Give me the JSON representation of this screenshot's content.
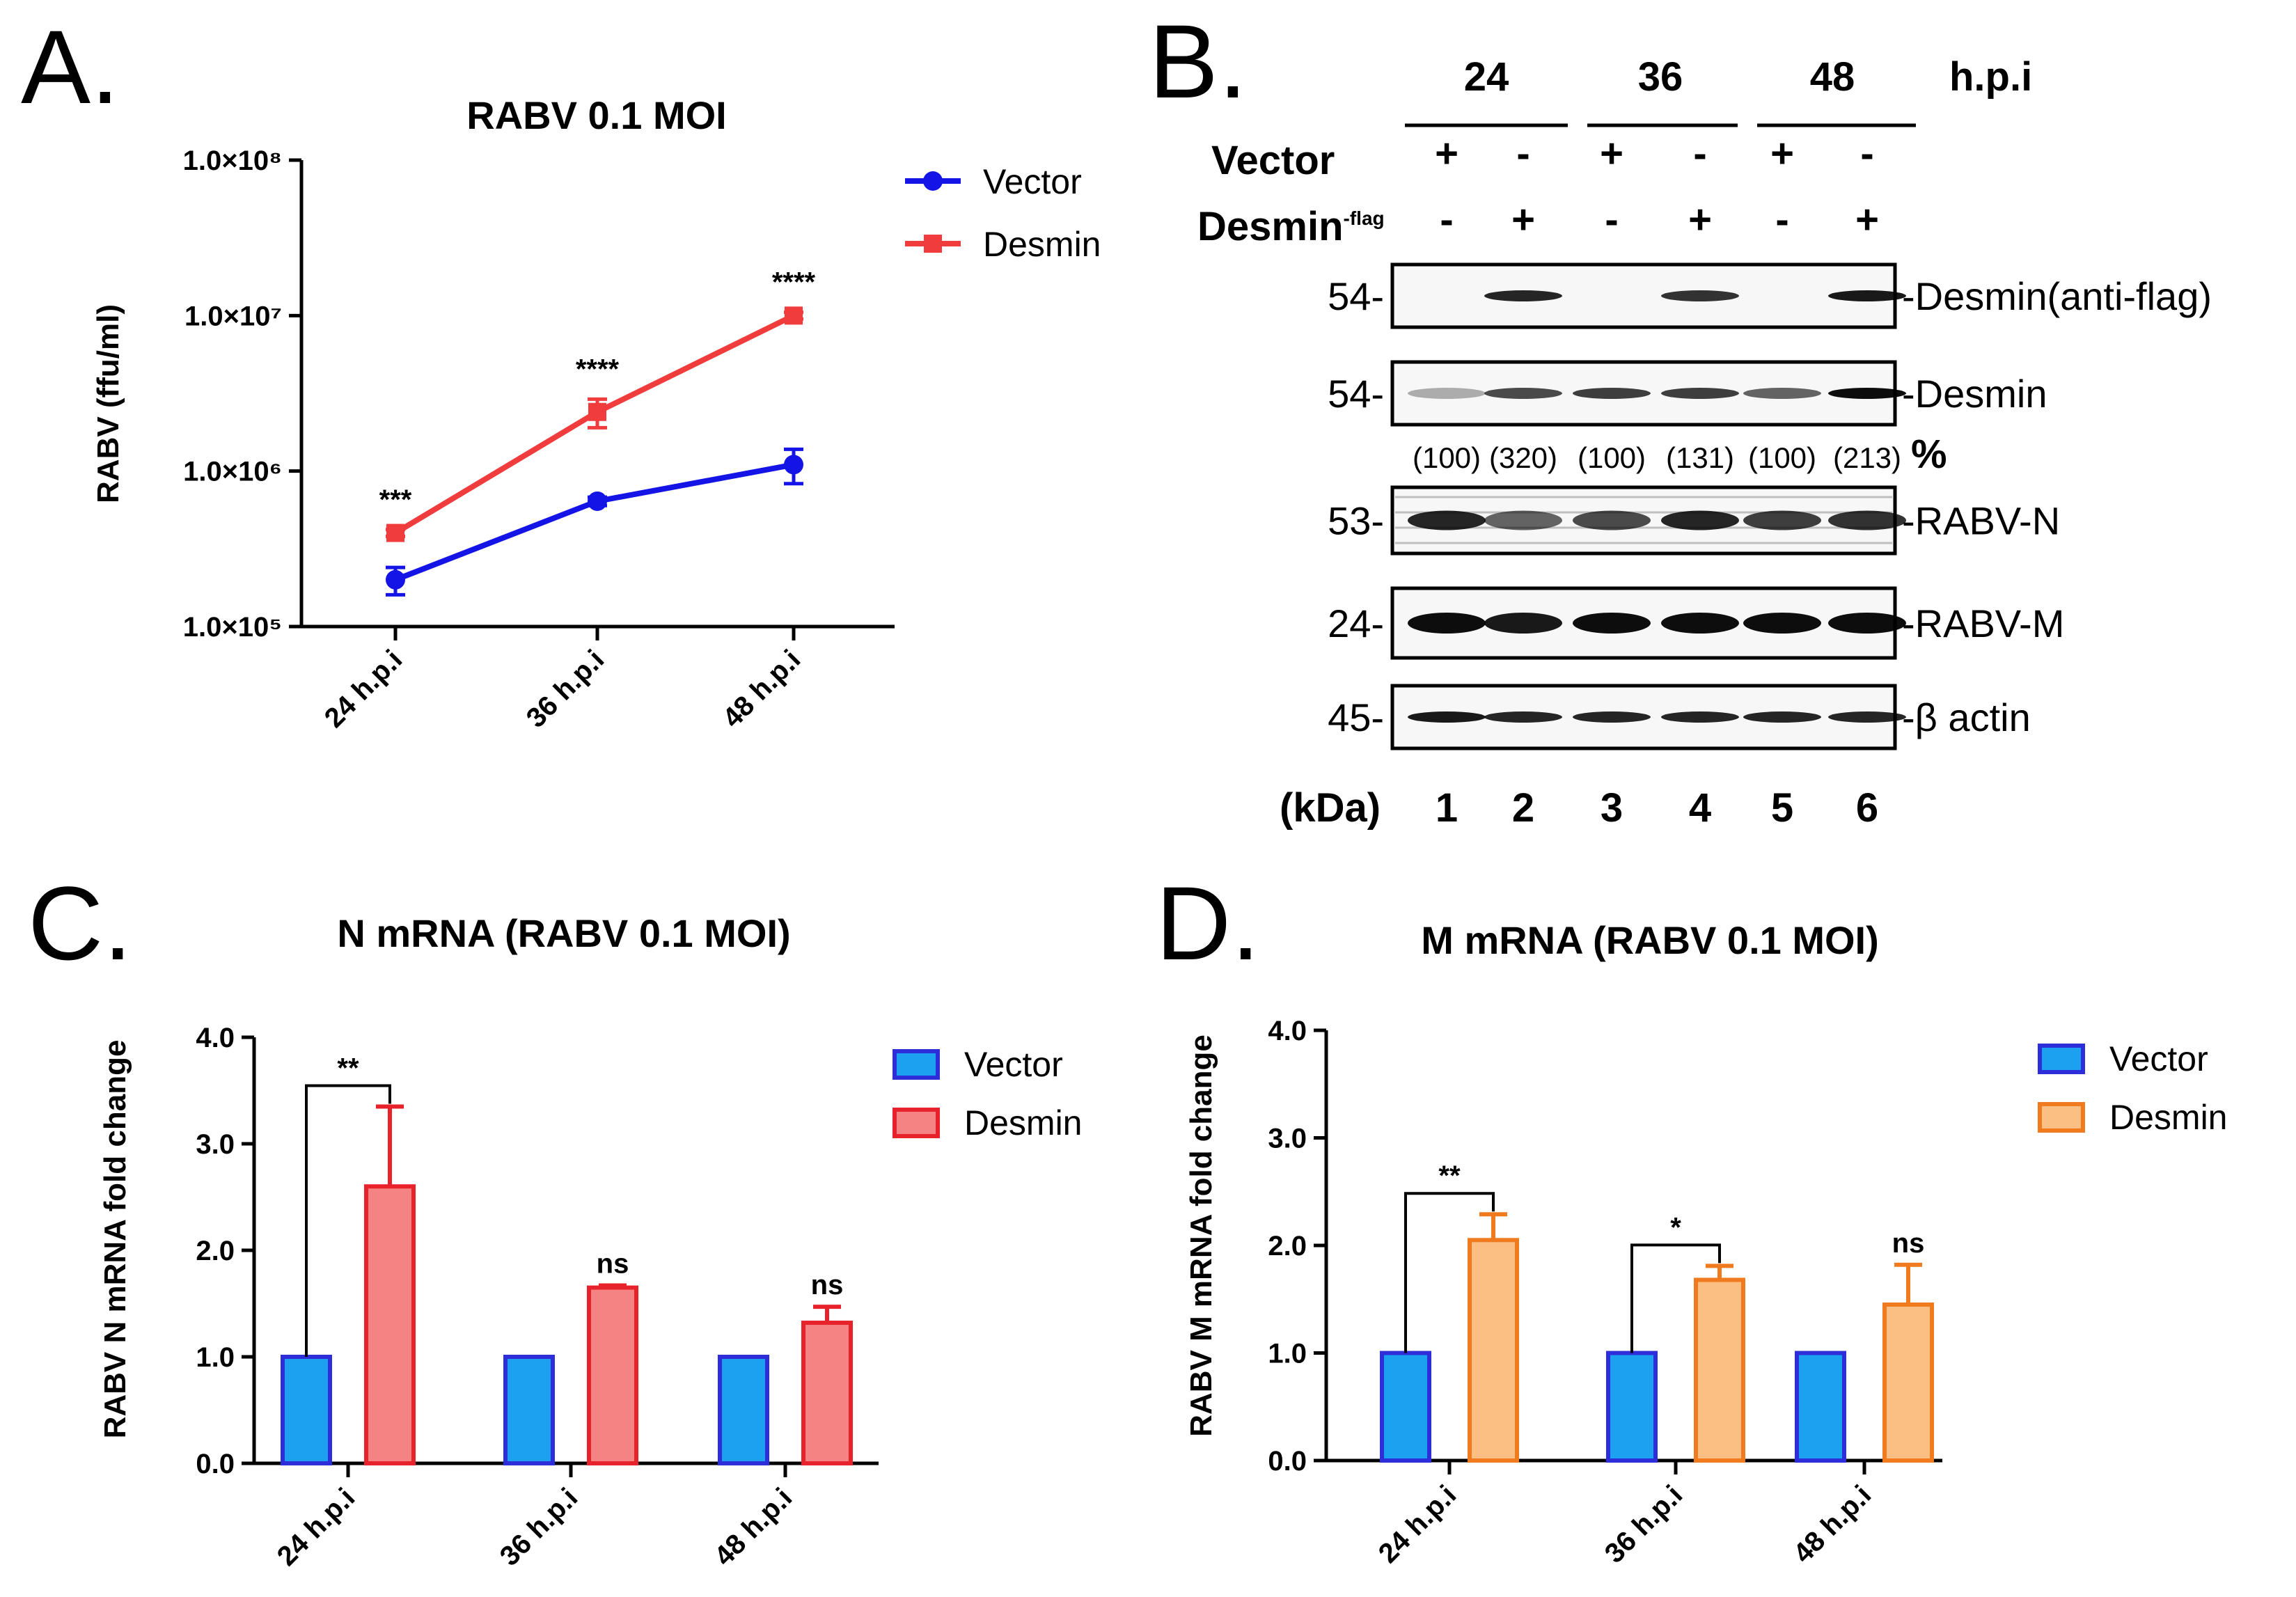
{
  "panels": {
    "a": {
      "letter": "A."
    },
    "b": {
      "letter": "B."
    },
    "c": {
      "letter": "C."
    },
    "d": {
      "letter": "D."
    }
  },
  "chart_data": [
    {
      "id": "A",
      "type": "line",
      "title": "RABV 0.1 MOI",
      "xlabel": "",
      "ylabel": "RABV (ffu/ml)",
      "yscale": "log",
      "ylim": [
        100000,
        100000000
      ],
      "ytick_labels": [
        "1.0×10⁵",
        "1.0×10⁶",
        "1.0×10⁷",
        "1.0×10⁸"
      ],
      "categories": [
        "24 h.p.i",
        "36 h.p.i",
        "48 h.p.i"
      ],
      "series": [
        {
          "name": "Vector",
          "color": "#1414e6",
          "marker": "circle",
          "values": [
            200000,
            640000,
            1100000
          ],
          "errors_low": [
            160000,
            600000,
            830000
          ],
          "errors_high": [
            240000,
            680000,
            1380000
          ]
        },
        {
          "name": "Desmin",
          "color": "#f03c3c",
          "marker": "square",
          "values": [
            400000,
            2400000,
            10000000
          ],
          "errors_low": [
            380000,
            1900000,
            9500000
          ],
          "errors_high": [
            420000,
            2900000,
            10500000
          ]
        }
      ],
      "annotations": [
        "***",
        "****",
        "****"
      ],
      "legend": "right"
    },
    {
      "id": "C",
      "type": "bar",
      "title": "N mRNA (RABV 0.1 MOI)",
      "xlabel": "",
      "ylabel": "RABV N mRNA fold change",
      "ylim": [
        0,
        4
      ],
      "ytick_labels": [
        "0.0",
        "1.0",
        "2.0",
        "3.0",
        "4.0"
      ],
      "categories": [
        "24 h.p.i",
        "36 h.p.i",
        "48 h.p.i"
      ],
      "series": [
        {
          "name": "Vector",
          "fill": "#1ba1ef",
          "edge": "#2d2dd9",
          "values": [
            1.0,
            1.0,
            1.0
          ],
          "errors": [
            0,
            0,
            0
          ]
        },
        {
          "name": "Desmin",
          "fill": "#f58383",
          "edge": "#e8222a",
          "values": [
            2.6,
            1.65,
            1.32
          ],
          "errors": [
            0.75,
            0.02,
            0.15
          ]
        }
      ],
      "significance": [
        "**",
        "ns",
        "ns"
      ],
      "legend": "top-right"
    },
    {
      "id": "D",
      "type": "bar",
      "title": "M mRNA (RABV 0.1 MOI)",
      "xlabel": "",
      "ylabel": "RABV M mRNA fold change",
      "ylim": [
        0,
        4
      ],
      "ytick_labels": [
        "0.0",
        "1.0",
        "2.0",
        "3.0",
        "4.0"
      ],
      "categories": [
        "24 h.p.i",
        "36 h.p.i",
        "48 h.p.i"
      ],
      "series": [
        {
          "name": "Vector",
          "fill": "#1ba1ef",
          "edge": "#2d2dd9",
          "values": [
            1.0,
            1.0,
            1.0
          ],
          "errors": [
            0,
            0,
            0
          ]
        },
        {
          "name": "Desmin",
          "fill": "#fbbf83",
          "edge": "#f07a1e",
          "values": [
            2.05,
            1.68,
            1.45
          ],
          "errors": [
            0.24,
            0.13,
            0.37
          ]
        }
      ],
      "significance": [
        "**",
        "*",
        "ns"
      ],
      "legend": "top-right"
    }
  ],
  "blot": {
    "timepoints": [
      "24",
      "36",
      "48"
    ],
    "time_unit": "h.p.i",
    "rows": [
      {
        "label": "Vector",
        "marks": [
          "+",
          "-",
          "+",
          "-",
          "+",
          "-"
        ]
      },
      {
        "label": "Desmin",
        "suffix": "-flag",
        "marks": [
          "-",
          "+",
          "-",
          "+",
          "-",
          "+"
        ]
      }
    ],
    "bands": [
      {
        "mw": "54-",
        "name": "-Desmin(anti-flag)",
        "intensity": [
          0.0,
          0.85,
          0.0,
          0.8,
          0.0,
          0.9
        ]
      },
      {
        "mw": "54-",
        "name": "-Desmin",
        "intensity": [
          0.3,
          0.7,
          0.75,
          0.75,
          0.6,
          0.95
        ]
      },
      {
        "mw": "53-",
        "name": "-RABV-N",
        "intensity": [
          0.85,
          0.6,
          0.7,
          0.85,
          0.75,
          0.8
        ]
      },
      {
        "mw": "24-",
        "name": "-RABV-M",
        "intensity": [
          0.95,
          0.9,
          0.95,
          0.95,
          0.95,
          0.95
        ]
      },
      {
        "mw": "45-",
        "name": "-β actin",
        "intensity": [
          0.9,
          0.85,
          0.85,
          0.85,
          0.85,
          0.85
        ]
      }
    ],
    "quant": [
      "(100)",
      "(320)",
      "(100)",
      "(131)",
      "(100)",
      "(213)"
    ],
    "quant_unit": "%",
    "kda_label": "(kDa)",
    "lanes": [
      "1",
      "2",
      "3",
      "4",
      "5",
      "6"
    ]
  }
}
